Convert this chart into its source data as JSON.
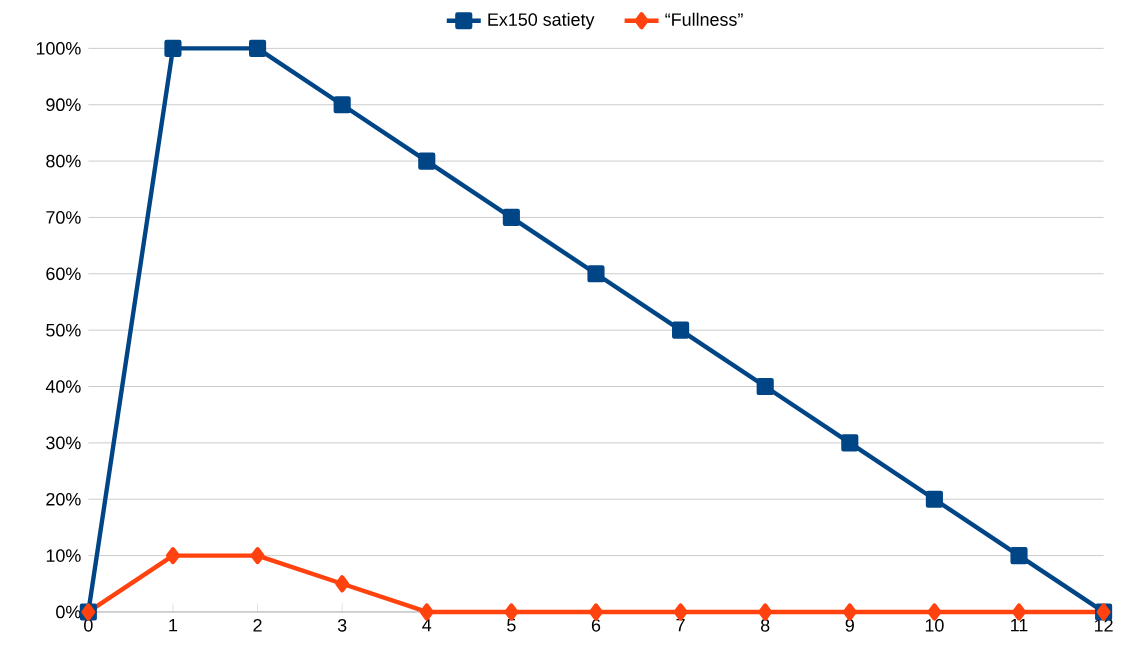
{
  "chart_data": {
    "type": "line",
    "x": [
      0,
      1,
      2,
      3,
      4,
      5,
      6,
      7,
      8,
      9,
      10,
      11,
      12
    ],
    "series": [
      {
        "name": "Ex150 satiety",
        "color": "#004586",
        "marker": "square",
        "values": [
          0,
          100,
          100,
          90,
          80,
          70,
          60,
          50,
          40,
          30,
          20,
          10,
          0
        ]
      },
      {
        "name": "“Fullness”",
        "color": "#ff420e",
        "marker": "diamond",
        "values": [
          0,
          10,
          10,
          5,
          0,
          0,
          0,
          0,
          0,
          0,
          0,
          0,
          0
        ]
      }
    ],
    "xlim": [
      0,
      12
    ],
    "xticks": [
      0,
      1,
      2,
      3,
      4,
      5,
      6,
      7,
      8,
      9,
      10,
      11,
      12
    ],
    "ylim": [
      0,
      100
    ],
    "yticks": [
      {
        "value": 0,
        "label": "0%"
      },
      {
        "value": 10,
        "label": "10%"
      },
      {
        "value": 20,
        "label": "20%"
      },
      {
        "value": 30,
        "label": "30%"
      },
      {
        "value": 40,
        "label": "40%"
      },
      {
        "value": 50,
        "label": "50%"
      },
      {
        "value": 60,
        "label": "60%"
      },
      {
        "value": 70,
        "label": "70%"
      },
      {
        "value": 80,
        "label": "80%"
      },
      {
        "value": 90,
        "label": "90%"
      },
      {
        "value": 100,
        "label": "100%"
      }
    ],
    "grid": "y",
    "legend": "top",
    "line_style": "solid"
  }
}
